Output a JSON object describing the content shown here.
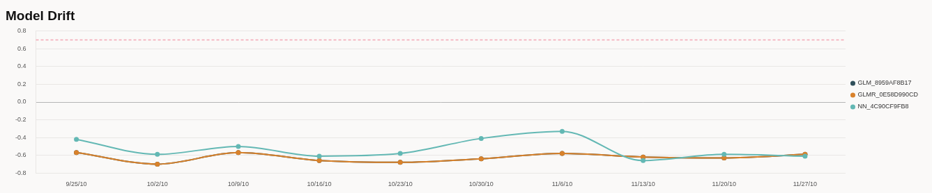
{
  "chart_data": {
    "type": "line",
    "title": "Model Drift",
    "categories": [
      "9/25/10",
      "10/2/10",
      "10/9/10",
      "10/16/10",
      "10/23/10",
      "10/30/10",
      "11/6/10",
      "11/13/10",
      "11/20/10",
      "11/27/10"
    ],
    "series": [
      {
        "name": "GLM_8959AF8B17",
        "color": "#2f4f5a",
        "values": [
          -0.57,
          -0.7,
          -0.57,
          -0.66,
          -0.68,
          -0.64,
          -0.58,
          -0.62,
          -0.63,
          -0.59
        ]
      },
      {
        "name": "GLMR_0E58D990CD",
        "color": "#d9822b",
        "values": [
          -0.57,
          -0.7,
          -0.57,
          -0.66,
          -0.68,
          -0.64,
          -0.58,
          -0.62,
          -0.63,
          -0.59
        ]
      },
      {
        "name": "NN_4C90CF9FB8",
        "color": "#63b8b4",
        "values": [
          -0.42,
          -0.59,
          -0.5,
          -0.61,
          -0.58,
          -0.41,
          -0.33,
          -0.66,
          -0.59,
          -0.61
        ]
      }
    ],
    "threshold": 0.7,
    "ylim": [
      -0.8,
      0.8
    ],
    "yticks": [
      -0.8,
      -0.6,
      -0.4,
      -0.2,
      {
        "value": 0,
        "label": "0.0"
      },
      0.2,
      0.4,
      0.6,
      0.8
    ],
    "grid": true,
    "legend": "right",
    "marker": "circle",
    "line_style": "smooth"
  }
}
